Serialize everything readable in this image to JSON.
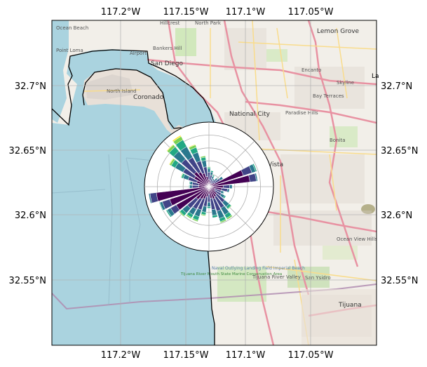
{
  "map": {
    "top_axis_labels": [
      "117.2°W",
      "117.15°W",
      "117.1°W",
      "117.05°W"
    ],
    "bottom_axis_labels": [
      "117.2°W",
      "117.15°W",
      "117.1°W",
      "117.05°W"
    ],
    "left_axis_labels": [
      "32.7°N",
      "32.65°N",
      "32.6°N",
      "32.55°N"
    ],
    "right_axis_labels": [
      "32.7°N",
      "32.65°N",
      "32.6°N",
      "32.55°N"
    ],
    "place_labels": {
      "ocean_beach": "Ocean Beach",
      "point_loma": "Point Loma",
      "hillcrest": "Hillcrest",
      "north_park": "North Park",
      "bankers_hill": "Bankers Hill",
      "san_diego": "San Diego",
      "airport": "Airport",
      "lemon_grove": "Lemon Grove",
      "encanto": "Encanto",
      "skyline": "Skyline",
      "bay_terraces": "Bay Terraces",
      "paradise_hills": "Paradise Hills",
      "national_city": "National City",
      "north_island": "North Island",
      "coronado": "Coronado",
      "bonita": "Bonita",
      "chula_vista": "Vista",
      "ocean_view_hills": "Ocean View Hills",
      "tijuana_river_valley": "Tijuana River Valley",
      "san_ysidro": "San Ysidro",
      "tijuana": "Tijuana",
      "naval_outlying_field": "Naval Outlying Landing Field Imperial Beach",
      "tijuana_river_reserve": "Tijuana River Mouth State Marine Conservation Area",
      "la_edge": "La"
    },
    "colors": {
      "water": "#aad3df",
      "land": "#f2efe9",
      "outline": "#000000",
      "grid": "#b0b0b0",
      "border_line": "#b08cb0",
      "highway": "#e892a2",
      "primary_road": "#f9dc8c",
      "park": "#c8e6b0"
    }
  },
  "rose": {
    "type": "windrose",
    "grid_radii": [
      1,
      2,
      3,
      4,
      5
    ],
    "colormap": "viridis",
    "n_bins": 6,
    "bin_colors": [
      "#440154",
      "#414487",
      "#2a788e",
      "#22a884",
      "#7ad151",
      "#fde725"
    ],
    "sectors": [
      {
        "dir": 0,
        "stack": [
          0.55,
          0.55,
          0.28,
          0.12,
          0.05,
          0.0
        ]
      },
      {
        "dir": 11.25,
        "stack": [
          0.45,
          0.45,
          0.25,
          0.1,
          0.0,
          0.0
        ]
      },
      {
        "dir": 22.5,
        "stack": [
          0.3,
          0.35,
          0.2,
          0.1,
          0.0,
          0.0
        ]
      },
      {
        "dir": 33.75,
        "stack": [
          0.3,
          0.25,
          0.15,
          0.0,
          0.0,
          0.0
        ]
      },
      {
        "dir": 45,
        "stack": [
          0.35,
          0.35,
          0.15,
          0.05,
          0.0,
          0.0
        ]
      },
      {
        "dir": 56.25,
        "stack": [
          0.5,
          0.5,
          0.25,
          0.0,
          0.0,
          0.0
        ]
      },
      {
        "dir": 67.5,
        "stack": [
          2.8,
          0.7,
          0.3,
          0.1,
          0.0,
          0.0
        ]
      },
      {
        "dir": 78.75,
        "stack": [
          3.2,
          0.5,
          0.1,
          0.0,
          0.0,
          0.0
        ]
      },
      {
        "dir": 90,
        "stack": [
          1.1,
          0.5,
          0.2,
          0.0,
          0.0,
          0.0
        ]
      },
      {
        "dir": 101.25,
        "stack": [
          1.0,
          0.45,
          0.15,
          0.0,
          0.0,
          0.0
        ]
      },
      {
        "dir": 112.5,
        "stack": [
          0.5,
          0.5,
          0.2,
          0.05,
          0.0,
          0.0
        ]
      },
      {
        "dir": 123.75,
        "stack": [
          0.55,
          0.55,
          0.3,
          0.1,
          0.0,
          0.0
        ]
      },
      {
        "dir": 135,
        "stack": [
          0.8,
          0.8,
          0.45,
          0.2,
          0.05,
          0.0
        ]
      },
      {
        "dir": 146.25,
        "stack": [
          0.9,
          1.0,
          0.6,
          0.3,
          0.12,
          0.0
        ]
      },
      {
        "dir": 157.5,
        "stack": [
          1.0,
          1.0,
          0.6,
          0.25,
          0.1,
          0.0
        ]
      },
      {
        "dir": 168.75,
        "stack": [
          0.9,
          0.9,
          0.45,
          0.18,
          0.0,
          0.0
        ]
      },
      {
        "dir": 180,
        "stack": [
          0.6,
          0.6,
          0.35,
          0.12,
          0.0,
          0.0
        ]
      },
      {
        "dir": 191.25,
        "stack": [
          0.8,
          0.75,
          0.45,
          0.2,
          0.08,
          0.0
        ]
      },
      {
        "dir": 202.5,
        "stack": [
          1.0,
          0.9,
          0.55,
          0.3,
          0.1,
          0.0
        ]
      },
      {
        "dir": 213.75,
        "stack": [
          1.1,
          0.9,
          0.5,
          0.25,
          0.1,
          0.0
        ]
      },
      {
        "dir": 225,
        "stack": [
          1.3,
          0.9,
          0.5,
          0.25,
          0.08,
          0.0
        ]
      },
      {
        "dir": 236.25,
        "stack": [
          2.9,
          0.5,
          0.3,
          0.1,
          0.0,
          0.0
        ]
      },
      {
        "dir": 247.5,
        "stack": [
          3.2,
          0.6,
          0.2,
          0.05,
          0.0,
          0.0
        ]
      },
      {
        "dir": 258.75,
        "stack": [
          4.1,
          0.5,
          0.1,
          0.0,
          0.0,
          0.0
        ]
      },
      {
        "dir": 270,
        "stack": [
          0.8,
          0.5,
          0.2,
          0.05,
          0.0,
          0.0
        ]
      },
      {
        "dir": 281.25,
        "stack": [
          0.8,
          0.5,
          0.2,
          0.05,
          0.0,
          0.0
        ]
      },
      {
        "dir": 292.5,
        "stack": [
          1.0,
          0.7,
          0.4,
          0.15,
          0.05,
          0.0
        ]
      },
      {
        "dir": 303.75,
        "stack": [
          1.3,
          1.0,
          0.7,
          0.35,
          0.15,
          0.05
        ]
      },
      {
        "dir": 315,
        "stack": [
          1.5,
          1.3,
          0.8,
          0.45,
          0.2,
          0.05
        ]
      },
      {
        "dir": 326.25,
        "stack": [
          1.3,
          1.3,
          0.95,
          0.6,
          0.3,
          0.1
        ]
      },
      {
        "dir": 337.5,
        "stack": [
          1.1,
          1.0,
          0.7,
          0.4,
          0.2,
          0.05
        ]
      },
      {
        "dir": 348.75,
        "stack": [
          0.8,
          0.75,
          0.5,
          0.25,
          0.1,
          0.0
        ]
      }
    ]
  }
}
